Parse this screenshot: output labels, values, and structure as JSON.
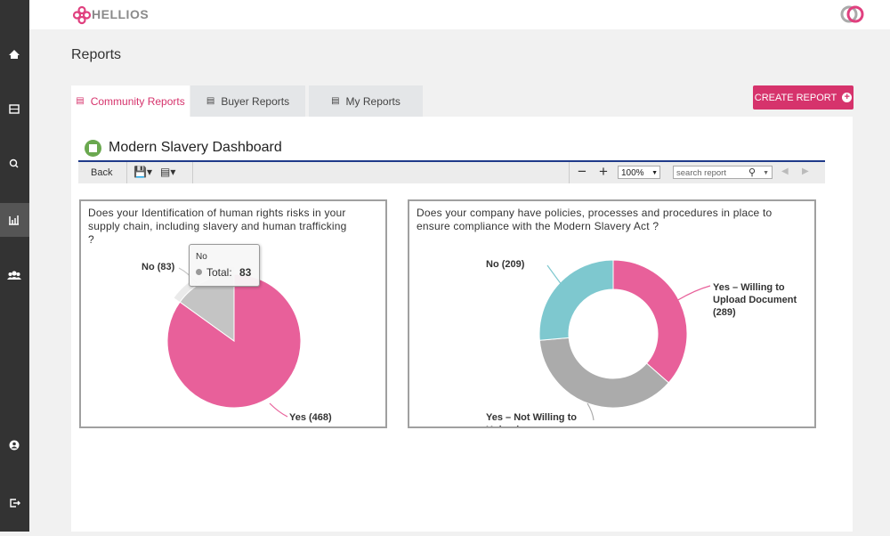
{
  "header": {
    "brand": "HELLIOS"
  },
  "page": {
    "title": "Reports"
  },
  "tabs": [
    "Community Reports",
    "Buyer Reports",
    "My Reports"
  ],
  "create_button": "CREATE REPORT",
  "dashboard": {
    "title": "Modern Slavery Dashboard",
    "toolbar": {
      "back": "Back",
      "zoom": "100%",
      "search_placeholder": "search report"
    }
  },
  "chart_data": [
    {
      "type": "pie",
      "title": "Does your Identification of human rights risks in your supply chain, including slavery and human trafficking ?",
      "values": [
        468,
        83
      ],
      "value_labels": [
        "Yes (468)",
        "No (83)"
      ],
      "colors": [
        "#e8609a",
        "#c4c4c4"
      ],
      "tooltip": {
        "title": "No",
        "label": "Total:"
      }
    },
    {
      "type": "donut",
      "title": "Does your company have policies, processes and procedures in place to ensure compliance with the Modern Slavery Act ?",
      "values": [
        289,
        294,
        209
      ],
      "value_labels": [
        "Yes – Willing to Upload Document (289)",
        "Yes – Not Willing to Upload",
        "No (209)"
      ],
      "colors": [
        "#e8609a",
        "#ababab",
        "#7ec8cf"
      ]
    }
  ]
}
